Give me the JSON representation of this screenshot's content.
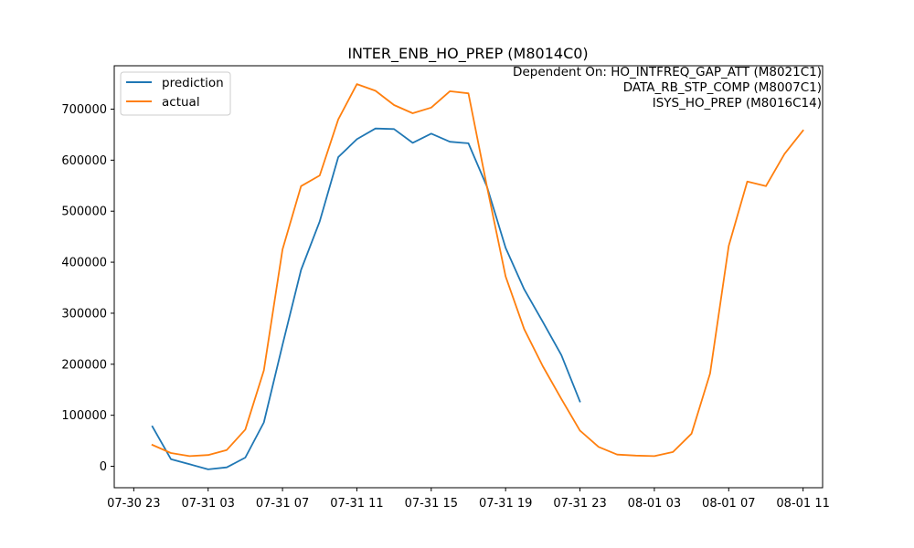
{
  "chart_data": {
    "type": "line",
    "title": "INTER_ENB_HO_PREP (M8014C0)",
    "xlabel": "",
    "ylabel": "",
    "x_tick_labels": [
      "07-30 23",
      "07-31 03",
      "07-31 07",
      "07-31 11",
      "07-31 15",
      "07-31 19",
      "07-31 23",
      "08-01 03",
      "08-01 07",
      "08-01 11"
    ],
    "x_ticks_hours": [
      -1,
      3,
      7,
      11,
      15,
      19,
      23,
      27,
      31,
      35
    ],
    "y_ticks": [
      0,
      100000,
      200000,
      300000,
      400000,
      500000,
      600000,
      700000
    ],
    "xlim_hours": [
      -2.05,
      36.05
    ],
    "ylim": [
      -42000,
      785000
    ],
    "grid": false,
    "legend": {
      "placement": "top-left"
    },
    "annotation": {
      "lines": [
        "Dependent On: HO_INTFREQ_GAP_ATT (M8021C1)",
        "DATA_RB_STP_COMP (M8007C1)",
        "ISYS_HO_PREP (M8016C14)"
      ],
      "placement": "top-right"
    },
    "series": [
      {
        "name": "prediction",
        "color": "#1f77b4",
        "x_hours": [
          0,
          1,
          2,
          3,
          4,
          5,
          6,
          7,
          8,
          9,
          10,
          11,
          12,
          13,
          14,
          15,
          16,
          17,
          18,
          19,
          20,
          21,
          22,
          23
        ],
        "values": [
          78000,
          14000,
          4000,
          -6000,
          -2000,
          17000,
          86000,
          238000,
          385000,
          480000,
          606000,
          641000,
          662000,
          661000,
          634000,
          652000,
          636000,
          633000,
          548000,
          428000,
          347000,
          283000,
          218000,
          127000
        ]
      },
      {
        "name": "actual",
        "color": "#ff7f0e",
        "x_hours": [
          0,
          1,
          2,
          3,
          4,
          5,
          6,
          7,
          8,
          9,
          10,
          11,
          12,
          13,
          14,
          15,
          16,
          17,
          18,
          19,
          20,
          21,
          22,
          23,
          24,
          25,
          26,
          27,
          28,
          29,
          30,
          31,
          32,
          33,
          34,
          35
        ],
        "values": [
          42000,
          26000,
          20000,
          22000,
          32000,
          72000,
          188000,
          425000,
          549000,
          570000,
          680000,
          749000,
          736000,
          708000,
          692000,
          703000,
          735000,
          731000,
          548000,
          372000,
          269000,
          196000,
          132000,
          70000,
          38000,
          23000,
          21000,
          20000,
          28000,
          64000,
          182000,
          432000,
          558000,
          549000,
          612000,
          658000
        ]
      }
    ]
  }
}
